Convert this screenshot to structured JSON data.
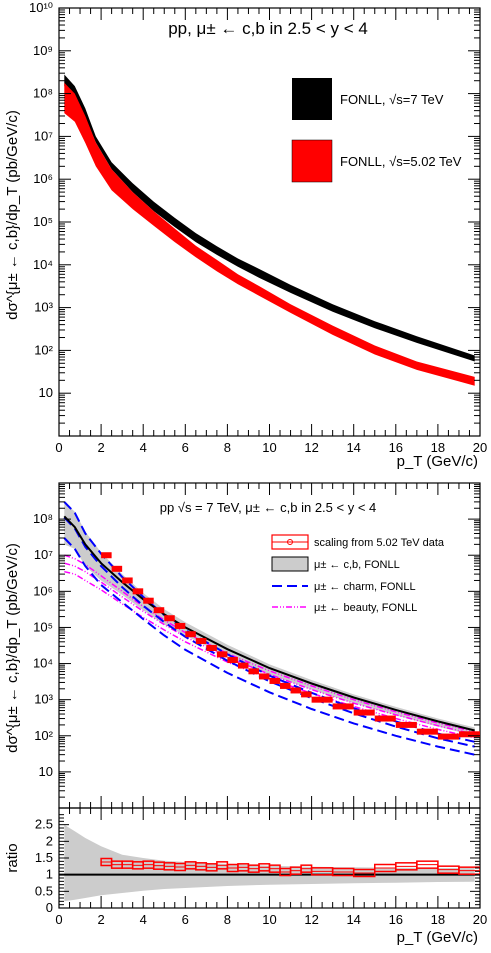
{
  "chart_data": [
    {
      "type": "area",
      "title": "pp, μ± ← c,b in 2.5 < y < 4",
      "xlabel": "p_T (GeV/c)",
      "ylabel": "dσ^{μ± ← c,b}/dp_T (pb/GeV/c)",
      "xlim": [
        0,
        20
      ],
      "ylim": [
        1,
        10000000000
      ],
      "yscale": "log",
      "x_ticks": [
        "0",
        "2",
        "4",
        "6",
        "8",
        "10",
        "12",
        "14",
        "16",
        "18",
        "20"
      ],
      "y_ticks": [
        "10",
        "10²",
        "10³",
        "10⁴",
        "10⁵",
        "10⁶",
        "10⁷",
        "10⁸",
        "10⁹",
        "10¹⁰"
      ],
      "legend_position": "top-right",
      "series": [
        {
          "name": "FONLL, √s=7 TeV",
          "color": "#000000",
          "x": [
            0.25,
            0.75,
            1.25,
            1.75,
            2.5,
            3.5,
            4.5,
            5.5,
            6.5,
            7.5,
            8.5,
            9.5,
            11,
            13,
            15,
            17,
            19.75
          ],
          "low": [
            150000000,
            80000000,
            28000000,
            7200000,
            1700000,
            500000,
            180000,
            76000,
            34000,
            17000,
            9000,
            5000,
            2200,
            800,
            330,
            150,
            55
          ],
          "high": [
            280000000,
            150000000,
            45000000,
            10000000,
            2500000,
            800000,
            300000,
            125000,
            55000,
            27000,
            14000,
            8000,
            3400,
            1200,
            480,
            215,
            76
          ]
        },
        {
          "name": "FONLL, √s=5.02 TeV",
          "color": "#ff0000",
          "x": [
            0.25,
            0.75,
            1.25,
            1.75,
            2.5,
            3.5,
            4.5,
            5.5,
            6.5,
            7.5,
            8.5,
            9.5,
            11,
            13,
            15,
            17,
            19.75
          ],
          "low": [
            35000000,
            22000000,
            7000000,
            2000000,
            550000,
            200000,
            82000,
            34000,
            15000,
            7000,
            3500,
            1900,
            750,
            230,
            80,
            35,
            15
          ],
          "high": [
            180000000,
            100000000,
            30000000,
            7200000,
            1700000,
            500000,
            180000,
            70000,
            28000,
            13000,
            6000,
            3200,
            1200,
            380,
            130,
            55,
            24
          ]
        }
      ]
    },
    {
      "type": "scatter",
      "title": "pp √s = 7 TeV, μ± ← c,b in 2.5 < y < 4",
      "xlabel": "",
      "ylabel": "dσ^{μ± ← c,b}/dp_T (pb/GeV/c)",
      "xlim": [
        0,
        20
      ],
      "ylim": [
        1,
        1000000000
      ],
      "yscale": "log",
      "y_ticks": [
        "10",
        "10²",
        "10³",
        "10⁴",
        "10⁵",
        "10⁶",
        "10⁷",
        "10⁸"
      ],
      "legend_position": "top-right",
      "series": [
        {
          "name": "scaling from 5.02 TeV data",
          "color": "#ff0000",
          "x": [
            2.25,
            2.75,
            3.25,
            3.75,
            4.25,
            4.75,
            5.25,
            5.75,
            6.25,
            6.75,
            7.25,
            7.75,
            8.25,
            8.75,
            9.25,
            9.75,
            10.25,
            10.75,
            11.25,
            11.75,
            12.5,
            13.5,
            14.5,
            15.5,
            16.5,
            17.5,
            18.5,
            19.5
          ],
          "y": [
            10000000,
            4200000,
            2000000,
            1000000,
            550000,
            300000,
            180000,
            110000,
            65000,
            42000,
            27000,
            18000,
            12500,
            8800,
            6100,
            4400,
            3300,
            2400,
            1800,
            1400,
            1000,
            650,
            440,
            300,
            200,
            130,
            95,
            110
          ]
        },
        {
          "name": "μ± ← c,b, FONLL",
          "color": "#000000",
          "x": [
            0.25,
            0.75,
            1.25,
            2,
            3,
            4,
            5,
            6,
            8,
            10,
            12,
            14,
            16,
            18,
            19.75
          ],
          "y": [
            120000000,
            60000000,
            20000000,
            6000000,
            1800000,
            600000,
            230000,
            100000,
            25000,
            7500,
            2800,
            1150,
            520,
            250,
            140
          ],
          "low": [
            20000000,
            15000000,
            5000000,
            2000000,
            800000,
            300000,
            120000,
            60000,
            16000,
            5000,
            1900,
            800,
            370,
            180,
            100
          ],
          "high": [
            300000000,
            160000000,
            45000000,
            12000000,
            3000000,
            900000,
            320000,
            140000,
            33000,
            9500,
            3500,
            1400,
            630,
            300,
            170
          ]
        },
        {
          "name": "μ± ← charm, FONLL",
          "color": "#0000ff",
          "x": [
            0.25,
            0.75,
            1.25,
            2,
            3,
            4,
            5,
            6,
            8,
            10,
            12,
            14,
            16,
            18,
            19.75
          ],
          "y": [
            110000000,
            55000000,
            17000000,
            5000000,
            1300000,
            400000,
            140000,
            55000,
            12000,
            3200,
            1100,
            420,
            180,
            85,
            50
          ],
          "low": [
            30000000,
            15000000,
            5000000,
            1500000,
            500000,
            170000,
            60000,
            24000,
            5500,
            1600,
            550,
            220,
            100,
            50,
            30
          ],
          "high": [
            300000000,
            150000000,
            40000000,
            11000000,
            2500000,
            700000,
            220000,
            85000,
            18000,
            4600,
            1550,
            580,
            250,
            115,
            68
          ]
        },
        {
          "name": "μ± ← beauty, FONLL",
          "color": "#ff00ff",
          "x": [
            0.25,
            0.75,
            1.25,
            2,
            3,
            4,
            5,
            6,
            8,
            10,
            12,
            14,
            16,
            18,
            19.75
          ],
          "y": [
            6000000,
            5000000,
            3500000,
            1800000,
            700000,
            280000,
            120000,
            55000,
            15000,
            5000,
            1900,
            800,
            380,
            190,
            110
          ],
          "low": [
            3500000,
            3000000,
            2000000,
            1100000,
            450000,
            190000,
            85000,
            40000,
            11000,
            3800,
            1500,
            650,
            300,
            150,
            88
          ],
          "high": [
            10000000,
            8000000,
            5500000,
            2700000,
            1000000,
            380000,
            160000,
            72000,
            19000,
            6300,
            2400,
            1000,
            460,
            225,
            130
          ]
        }
      ]
    },
    {
      "type": "scatter",
      "xlabel": "p_T (GeV/c)",
      "ylabel": "ratio",
      "xlim": [
        0,
        20
      ],
      "ylim": [
        0,
        3
      ],
      "x_ticks": [
        "0",
        "2",
        "4",
        "6",
        "8",
        "10",
        "12",
        "14",
        "16",
        "18",
        "20"
      ],
      "y_ticks": [
        "0",
        "0.5",
        "1",
        "1.5",
        "2",
        "2.5"
      ],
      "reference_line": 1,
      "band": {
        "x": [
          0.25,
          0.75,
          1.25,
          2,
          3,
          4,
          5,
          6,
          8,
          10,
          12,
          14,
          16,
          18,
          19.75
        ],
        "low": [
          0.2,
          0.25,
          0.3,
          0.38,
          0.45,
          0.52,
          0.57,
          0.6,
          0.66,
          0.7,
          0.72,
          0.74,
          0.76,
          0.78,
          0.79
        ],
        "high": [
          2.5,
          2.3,
          2.1,
          1.85,
          1.6,
          1.5,
          1.42,
          1.38,
          1.32,
          1.27,
          1.24,
          1.22,
          1.21,
          1.2,
          1.2
        ]
      },
      "series": [
        {
          "name": "scaling from 5.02 TeV data",
          "color": "#ff0000",
          "x": [
            2.25,
            2.75,
            3.25,
            3.75,
            4.25,
            4.75,
            5.25,
            5.75,
            6.25,
            6.75,
            7.25,
            7.75,
            8.25,
            8.75,
            9.25,
            9.75,
            10.25,
            10.75,
            11.25,
            11.75,
            12.5,
            13.5,
            14.5,
            15.5,
            16.5,
            17.5,
            18.5,
            19.5
          ],
          "y": [
            1.38,
            1.3,
            1.3,
            1.28,
            1.3,
            1.27,
            1.25,
            1.23,
            1.28,
            1.25,
            1.22,
            1.28,
            1.2,
            1.22,
            1.18,
            1.22,
            1.18,
            1.08,
            1.12,
            1.18,
            1.1,
            1.08,
            1.05,
            1.2,
            1.25,
            1.3,
            1.15,
            1.12
          ]
        }
      ]
    }
  ]
}
